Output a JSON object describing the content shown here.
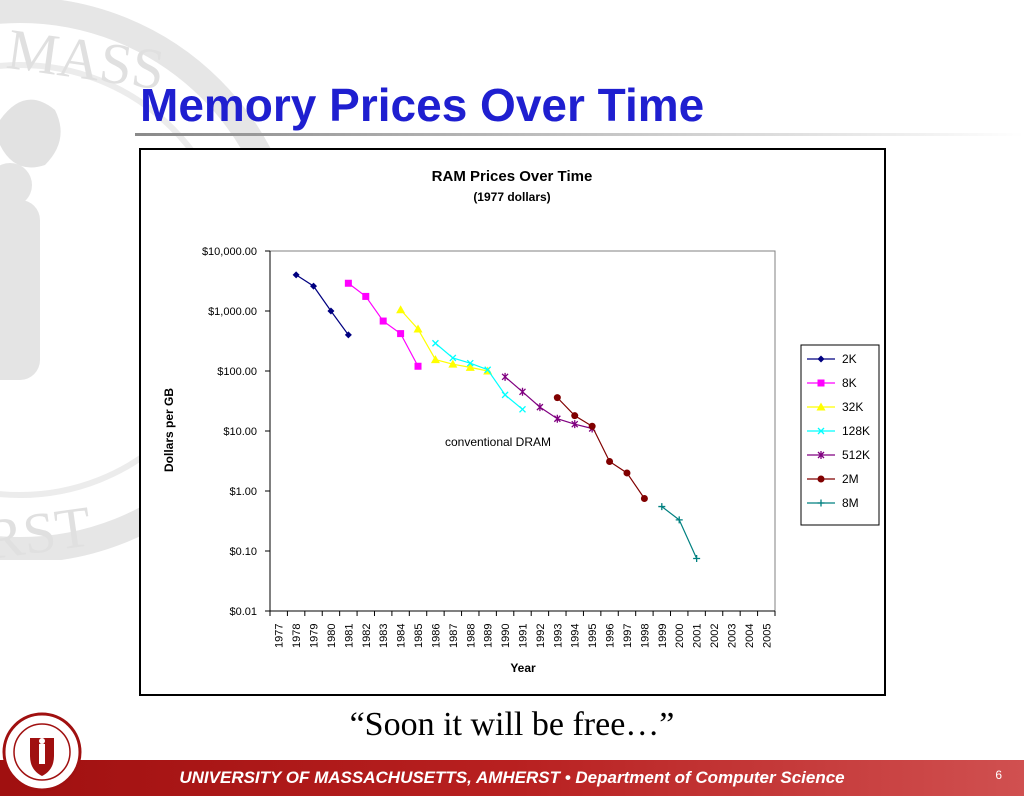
{
  "slide": {
    "title": "Memory Prices Over Time",
    "quote": "“Soon it will be free…”",
    "footer": "UNIVERSITY OF MASSACHUSETTS, AMHERST  •  Department of Computer Science",
    "page_number": "6",
    "watermark_text_top": "F MASS",
    "watermark_text_bottom": "ERST",
    "colors": {
      "title": "#1f1fd0",
      "footer": "#b82020"
    }
  },
  "chart_data": {
    "type": "line",
    "title": "RAM Prices Over Time",
    "subtitle": "(1977 dollars)",
    "xlabel": "Year",
    "ylabel": "Dollars per GB",
    "y_scale": "log",
    "ylim": [
      0.01,
      10000
    ],
    "y_ticks": [
      {
        "value": 10000,
        "label": "$10,000.00"
      },
      {
        "value": 1000,
        "label": "$1,000.00"
      },
      {
        "value": 100,
        "label": "$100.00"
      },
      {
        "value": 10,
        "label": "$10.00"
      },
      {
        "value": 1,
        "label": "$1.00"
      },
      {
        "value": 0.1,
        "label": "$0.10"
      },
      {
        "value": 0.01,
        "label": "$0.01"
      }
    ],
    "categories": [
      "1977",
      "1978",
      "1979",
      "1980",
      "1981",
      "1982",
      "1983",
      "1984",
      "1985",
      "1986",
      "1987",
      "1988",
      "1989",
      "1990",
      "1991",
      "1992",
      "1993",
      "1994",
      "1995",
      "1996",
      "1997",
      "1998",
      "1999",
      "2000",
      "2001",
      "2002",
      "2003",
      "2004",
      "2005"
    ],
    "annotation": "conventional DRAM",
    "legend_position": "right",
    "grid": false,
    "series": [
      {
        "name": "2K",
        "color": "#000080",
        "marker": "diamond",
        "points": [
          [
            1978,
            4000
          ],
          [
            1979,
            2600
          ],
          [
            1980,
            1000
          ],
          [
            1981,
            400
          ]
        ]
      },
      {
        "name": "8K",
        "color": "#ff00ff",
        "marker": "square",
        "points": [
          [
            1981,
            2900
          ],
          [
            1982,
            1750
          ],
          [
            1983,
            680
          ],
          [
            1984,
            420
          ],
          [
            1985,
            120
          ]
        ]
      },
      {
        "name": "32K",
        "color": "#ffff00",
        "marker": "triangle",
        "points": [
          [
            1984,
            1050
          ],
          [
            1985,
            500
          ],
          [
            1986,
            155
          ],
          [
            1987,
            130
          ],
          [
            1988,
            115
          ],
          [
            1989,
            100
          ]
        ]
      },
      {
        "name": "128K",
        "color": "#00ffff",
        "marker": "x",
        "points": [
          [
            1986,
            290
          ],
          [
            1987,
            165
          ],
          [
            1988,
            135
          ],
          [
            1989,
            105
          ],
          [
            1990,
            40
          ],
          [
            1991,
            23
          ]
        ]
      },
      {
        "name": "512K",
        "color": "#800080",
        "marker": "star",
        "points": [
          [
            1990,
            80
          ],
          [
            1991,
            45
          ],
          [
            1992,
            25
          ],
          [
            1993,
            16
          ],
          [
            1994,
            13
          ],
          [
            1995,
            11
          ]
        ]
      },
      {
        "name": "2M",
        "color": "#800000",
        "marker": "circle",
        "points": [
          [
            1993,
            36
          ],
          [
            1994,
            18
          ],
          [
            1995,
            12
          ],
          [
            1996,
            3.1
          ],
          [
            1997,
            2.0
          ],
          [
            1998,
            0.75
          ]
        ]
      },
      {
        "name": "8M",
        "color": "#008080",
        "marker": "plus",
        "points": [
          [
            1999,
            0.55
          ],
          [
            2000,
            0.33
          ],
          [
            2001,
            0.075
          ]
        ]
      }
    ]
  }
}
